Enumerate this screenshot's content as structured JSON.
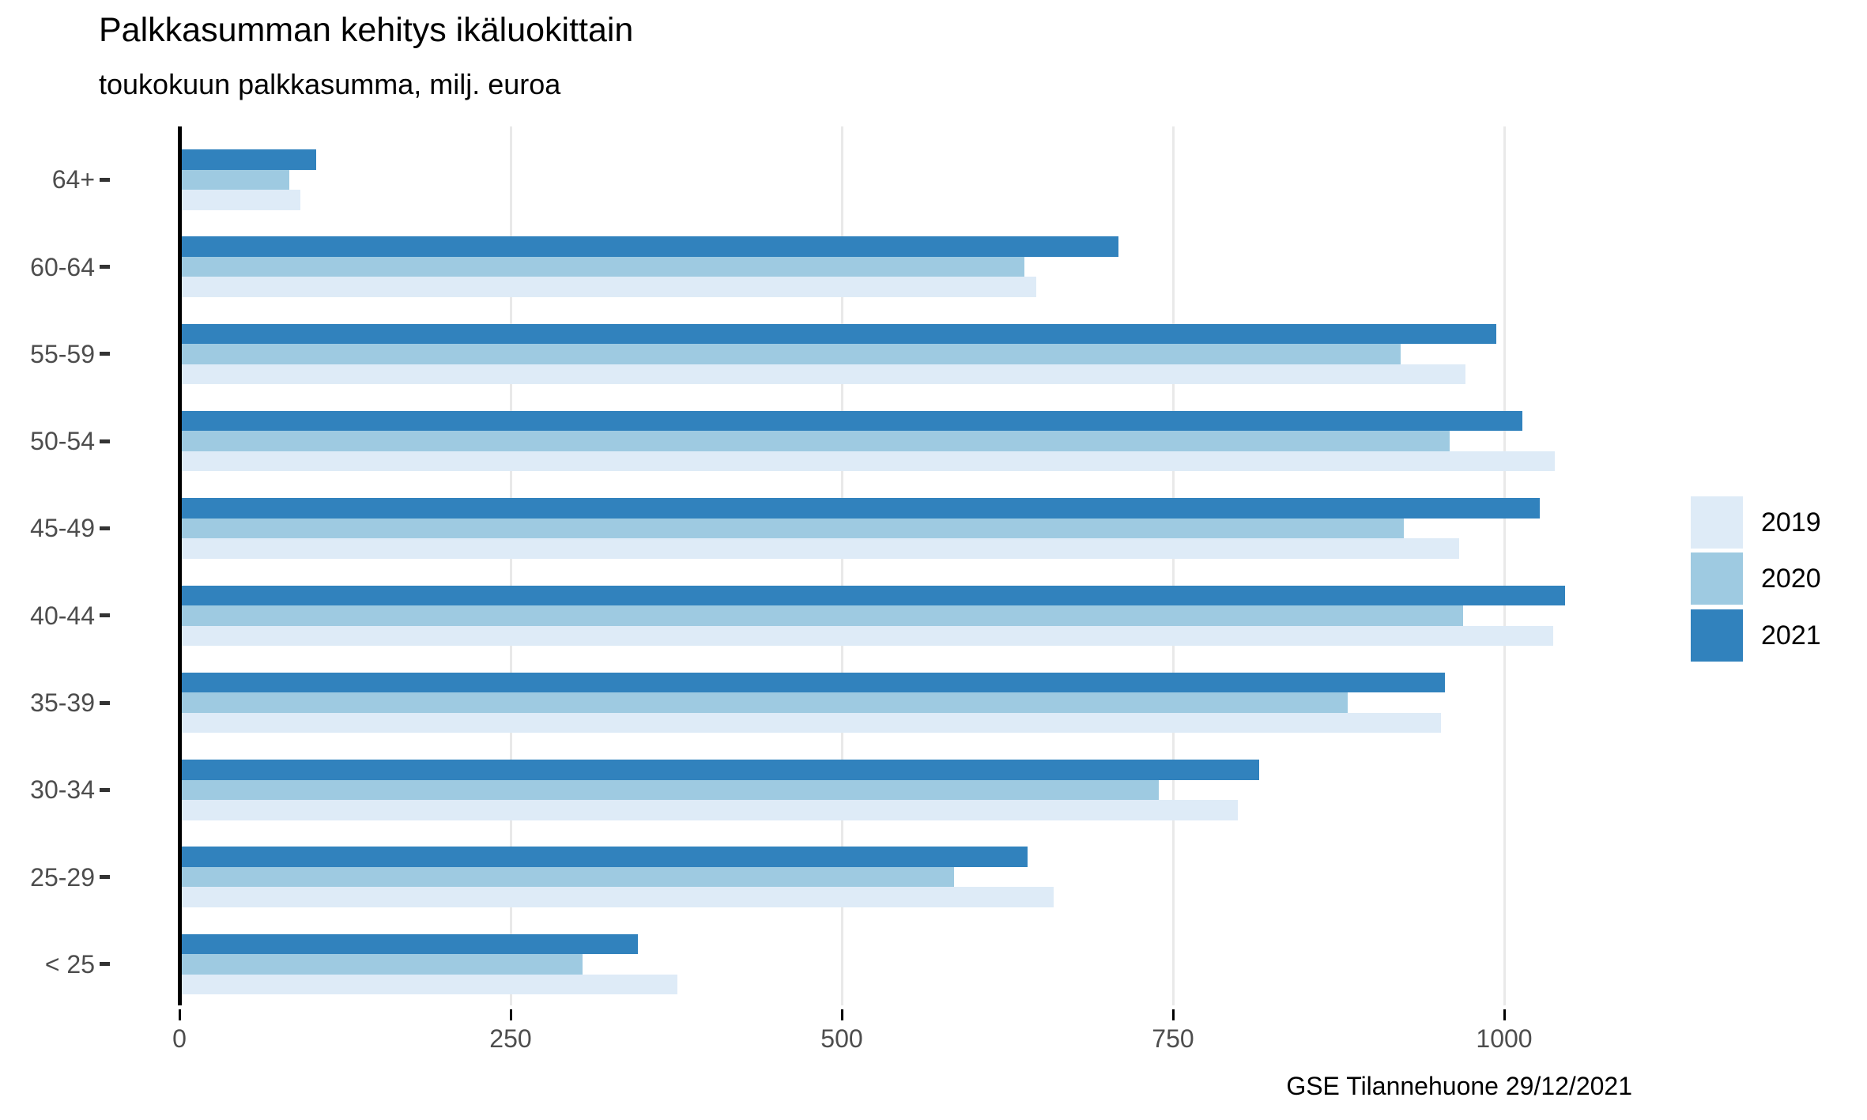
{
  "title": "Palkkasumman kehitys ikäluokittain",
  "subtitle": "toukokuun palkkasumma, milj. euroa",
  "caption": "GSE Tilannehuone 29/12/2021",
  "legend": {
    "position": "right",
    "entries": [
      {
        "label": "2019",
        "color": "#deebf7"
      },
      {
        "label": "2020",
        "color": "#9ecae1"
      },
      {
        "label": "2021",
        "color": "#3182bd"
      }
    ]
  },
  "chart_data": {
    "type": "bar",
    "orientation": "horizontal",
    "title": "Palkkasumman kehitys ikäluokittain",
    "subtitle": "toukokuun palkkasumma, milj. euroa",
    "caption": "GSE Tilannehuone 29/12/2021",
    "xlabel": "",
    "ylabel": "",
    "categories": [
      "64+",
      "60-64",
      "55-59",
      "50-54",
      "45-49",
      "40-44",
      "35-39",
      "30-34",
      "25-29",
      "< 25"
    ],
    "series": [
      {
        "name": "2019",
        "color": "#deebf7",
        "values": [
          91,
          647,
          971,
          1038,
          966,
          1037,
          952,
          799,
          660,
          376
        ]
      },
      {
        "name": "2020",
        "color": "#9ecae1",
        "values": [
          83,
          638,
          922,
          959,
          924,
          969,
          882,
          739,
          585,
          304
        ]
      },
      {
        "name": "2021",
        "color": "#3182bd",
        "values": [
          103,
          709,
          994,
          1014,
          1027,
          1046,
          955,
          815,
          640,
          346
        ]
      }
    ],
    "bar_order_top_to_bottom": [
      "2021",
      "2020",
      "2019"
    ],
    "x_ticks": [
      0,
      250,
      500,
      750,
      1000
    ],
    "x_tick_labels": [
      "0",
      "250",
      "500",
      "750",
      "1000"
    ],
    "xlim": [
      0,
      1123
    ],
    "grid": "vertical-major-only",
    "gridline_color": "#e9e9e9",
    "axis_zero_line_color": "#000000",
    "legend_position": "right"
  }
}
